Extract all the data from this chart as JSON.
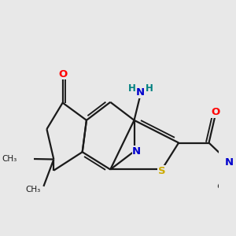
{
  "background_color": "#e8e8e8",
  "bond_color": "#1a1a1a",
  "bond_width": 1.6,
  "atom_colors": {
    "O": "#ff0000",
    "N": "#0000cc",
    "S": "#ccaa00",
    "H_teal": "#008080",
    "C": "#1a1a1a"
  },
  "xlim": [
    -2.6,
    3.2
  ],
  "ylim": [
    -2.2,
    2.4
  ]
}
